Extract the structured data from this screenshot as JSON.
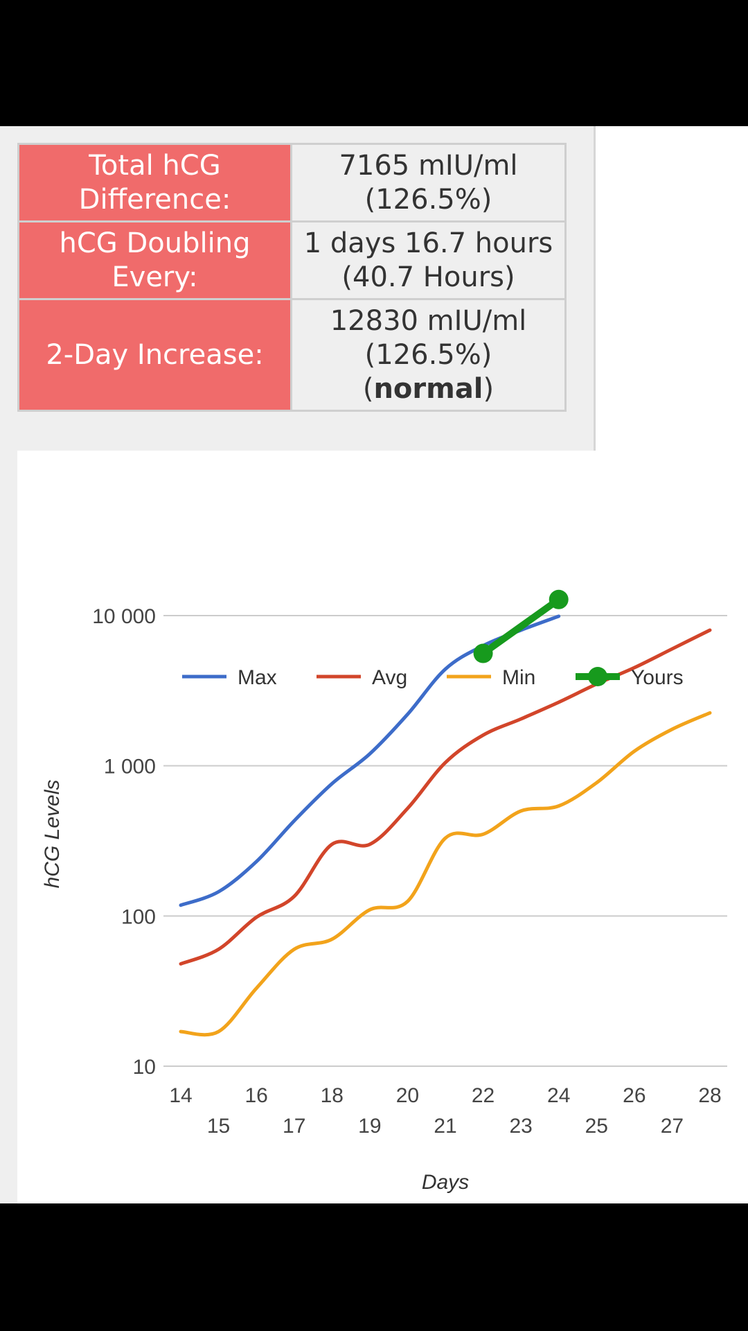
{
  "stats": {
    "rows": [
      {
        "label_lines": [
          "Total hCG",
          "Difference:"
        ],
        "value_lines": [
          "7165 mIU/ml",
          "(126.5%)"
        ]
      },
      {
        "label_lines": [
          "hCG Doubling",
          "Every:"
        ],
        "value_lines": [
          "1 days 16.7 hours",
          "(40.7 Hours)"
        ]
      },
      {
        "label_lines": [
          "2-Day Increase:"
        ],
        "value_lines": [
          "12830 mIU/ml",
          "(126.5%)"
        ],
        "status_open": "(",
        "status": "normal",
        "status_close": ")"
      }
    ]
  },
  "chart_data": {
    "type": "line",
    "title": "",
    "xlabel": "Days",
    "ylabel": "hCG Levels",
    "y_scale": "log",
    "ylim": [
      10,
      10000
    ],
    "y_ticks": [
      10,
      100,
      1000,
      10000
    ],
    "y_tick_labels": [
      "10",
      "100",
      "1 000",
      "10 000"
    ],
    "xlim": [
      14,
      28
    ],
    "x_ticks": [
      14,
      15,
      16,
      17,
      18,
      19,
      20,
      21,
      22,
      23,
      24,
      25,
      26,
      27,
      28
    ],
    "grid": true,
    "legend_position": "top",
    "series": [
      {
        "name": "Max",
        "color": "#3d6cc9",
        "x": [
          14,
          15,
          16,
          17,
          18,
          19,
          20,
          21,
          22,
          23,
          24
        ],
        "y": [
          118,
          145,
          230,
          430,
          760,
          1200,
          2200,
          4400,
          6300,
          8000,
          9900
        ]
      },
      {
        "name": "Avg",
        "color": "#d2452a",
        "x": [
          14,
          15,
          16,
          17,
          18,
          19,
          20,
          21,
          22,
          23,
          24,
          25,
          26,
          27,
          28
        ],
        "y": [
          48,
          60,
          98,
          135,
          300,
          300,
          520,
          1050,
          1600,
          2050,
          2650,
          3500,
          4500,
          6000,
          8000
        ]
      },
      {
        "name": "Min",
        "color": "#f2a31b",
        "x": [
          14,
          15,
          16,
          17,
          18,
          19,
          20,
          21,
          22,
          23,
          24,
          25,
          26,
          27,
          28
        ],
        "y": [
          17,
          17,
          33,
          60,
          70,
          110,
          125,
          330,
          350,
          500,
          540,
          770,
          1250,
          1750,
          2250
        ]
      },
      {
        "name": "Yours",
        "color": "#179a1d",
        "markers": true,
        "x": [
          22,
          24
        ],
        "y": [
          5600,
          12800
        ]
      }
    ]
  }
}
